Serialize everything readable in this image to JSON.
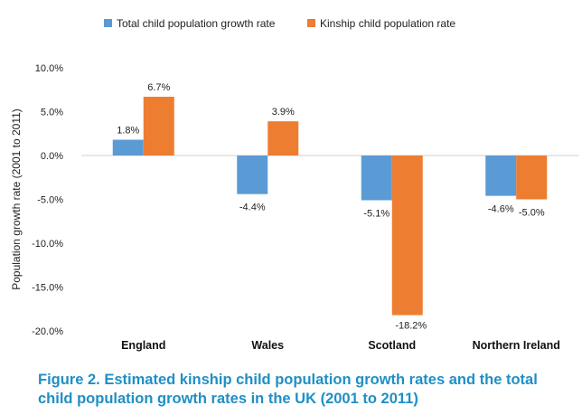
{
  "caption": "Figure 2. Estimated kinship child population growth rates and the total child population growth rates in the UK (2001 to 2011)",
  "colors": {
    "caption": "#1f8fc4"
  },
  "chart_data": {
    "type": "bar",
    "categories": [
      "England",
      "Wales",
      "Scotland",
      "Northern Ireland"
    ],
    "series": [
      {
        "name": "Total child population growth rate",
        "values": [
          1.8,
          -4.4,
          -5.1,
          -4.6
        ],
        "labels": [
          "1.8%",
          "-4.4%",
          "-5.1%",
          "-4.6%"
        ],
        "color": "#5b9bd5"
      },
      {
        "name": "Kinship child population rate",
        "values": [
          6.7,
          3.9,
          -18.2,
          -5.0
        ],
        "labels": [
          "6.7%",
          "3.9%",
          "-18.2%",
          "-5.0%"
        ],
        "color": "#ed7d31"
      }
    ],
    "ylabel": "Population growth rate (2001 to 2011)",
    "xlabel": "",
    "ylim": [
      -20,
      10
    ],
    "yticks": [
      10,
      5,
      0,
      -5,
      -10,
      -15,
      -20
    ],
    "ytick_labels": [
      "10.0%",
      "5.0%",
      "0.0%",
      "-5.0%",
      "-10.0%",
      "-15.0%",
      "-20.0%"
    ],
    "legend_position": "top",
    "grid": false
  }
}
